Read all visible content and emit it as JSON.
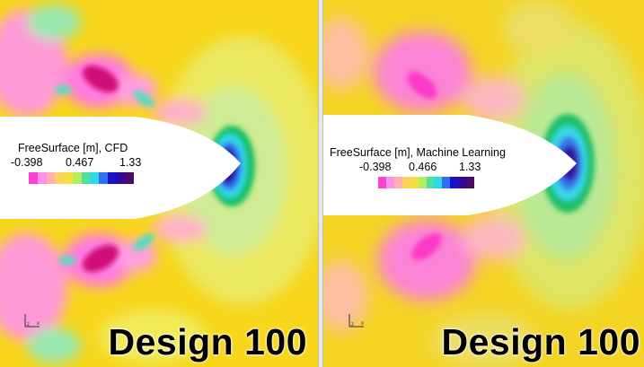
{
  "colors": {
    "background_yellow": "#f7d61c",
    "hull_fill": "#ffffff",
    "bow_dark_blue": "#2a0fa0",
    "colorbar": [
      "#ff3fd0",
      "#ff8fe8",
      "#ffb0b0",
      "#ffd060",
      "#f4e040",
      "#b8ec60",
      "#50e0a0",
      "#30d8e8",
      "#3070f0",
      "#1a10c8",
      "#300a9a",
      "#4a0a6a"
    ]
  },
  "panels": [
    {
      "id": "cfd",
      "legend_title": "FreeSurface [m], CFD",
      "ticks": [
        "-0.398",
        "0.467",
        "1.33"
      ],
      "design_label": "Design 100",
      "axes_label": "z x"
    },
    {
      "id": "ml",
      "legend_title": "FreeSurface [m], Machine Learning",
      "ticks": [
        "-0.398",
        "0.466",
        "1.33"
      ],
      "design_label": "Design 100",
      "axes_label": "z x"
    }
  ]
}
